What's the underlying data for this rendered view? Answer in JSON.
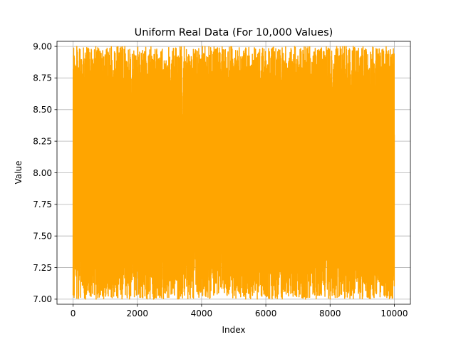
{
  "chart_data": {
    "type": "line",
    "title": "Uniform Real Data (For 10,000 Values)",
    "xlabel": "Index",
    "ylabel": "Value",
    "xlim": [
      -500,
      10500
    ],
    "ylim": [
      6.96,
      9.04
    ],
    "xticks": [
      0,
      2000,
      4000,
      6000,
      8000,
      10000
    ],
    "xtick_labels": [
      "0",
      "2000",
      "4000",
      "6000",
      "8000",
      "10000"
    ],
    "yticks": [
      7.0,
      7.25,
      7.5,
      7.75,
      8.0,
      8.25,
      8.5,
      8.75,
      9.0
    ],
    "ytick_labels": [
      "7.00",
      "7.25",
      "7.50",
      "7.75",
      "8.00",
      "8.25",
      "8.50",
      "8.75",
      "9.00"
    ],
    "grid": true,
    "series": [
      {
        "color": "#ffa500",
        "n_points": 10000,
        "distribution": "uniform",
        "low": 7.0,
        "high": 9.0,
        "x_start": 0,
        "x_end": 9999
      }
    ]
  }
}
